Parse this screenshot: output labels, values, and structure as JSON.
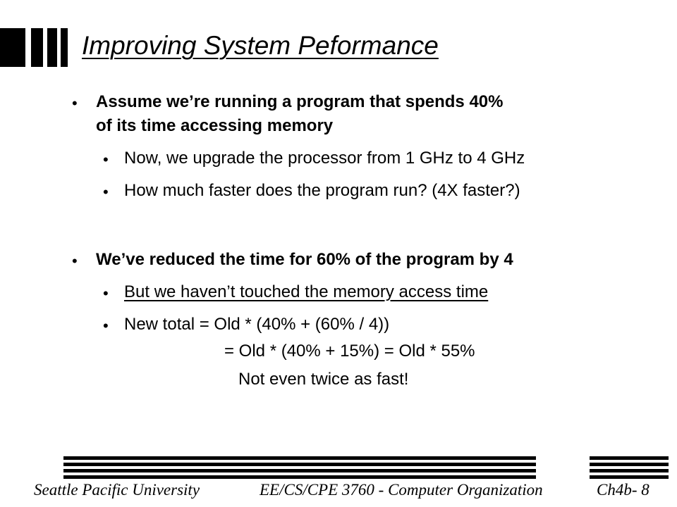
{
  "slide": {
    "title": "Improving System Peformance",
    "bullet_glyph": "•",
    "points": [
      {
        "text_line1": "Assume we’re running a program that spends 40%",
        "text_line2": "of its time accessing memory",
        "subpoints": [
          "Now, we upgrade the processor from 1 GHz to 4 GHz",
          "How much faster does the program run? (4X faster?)"
        ]
      },
      {
        "text_line1": "We’ve reduced the time for 60% of the program by 4",
        "subpoints": [
          "But we haven’t touched the memory access time",
          "New total = Old * (40% + (60% / 4))"
        ],
        "continuation": [
          "= Old * (40% + 15%) = Old * 55%",
          "Not even twice as fast!"
        ]
      }
    ],
    "footer": {
      "institution": "Seattle  Pacific University",
      "course": "EE/CS/CPE 3760 - Computer Organization",
      "slide_number": "Ch4b- 8"
    }
  }
}
